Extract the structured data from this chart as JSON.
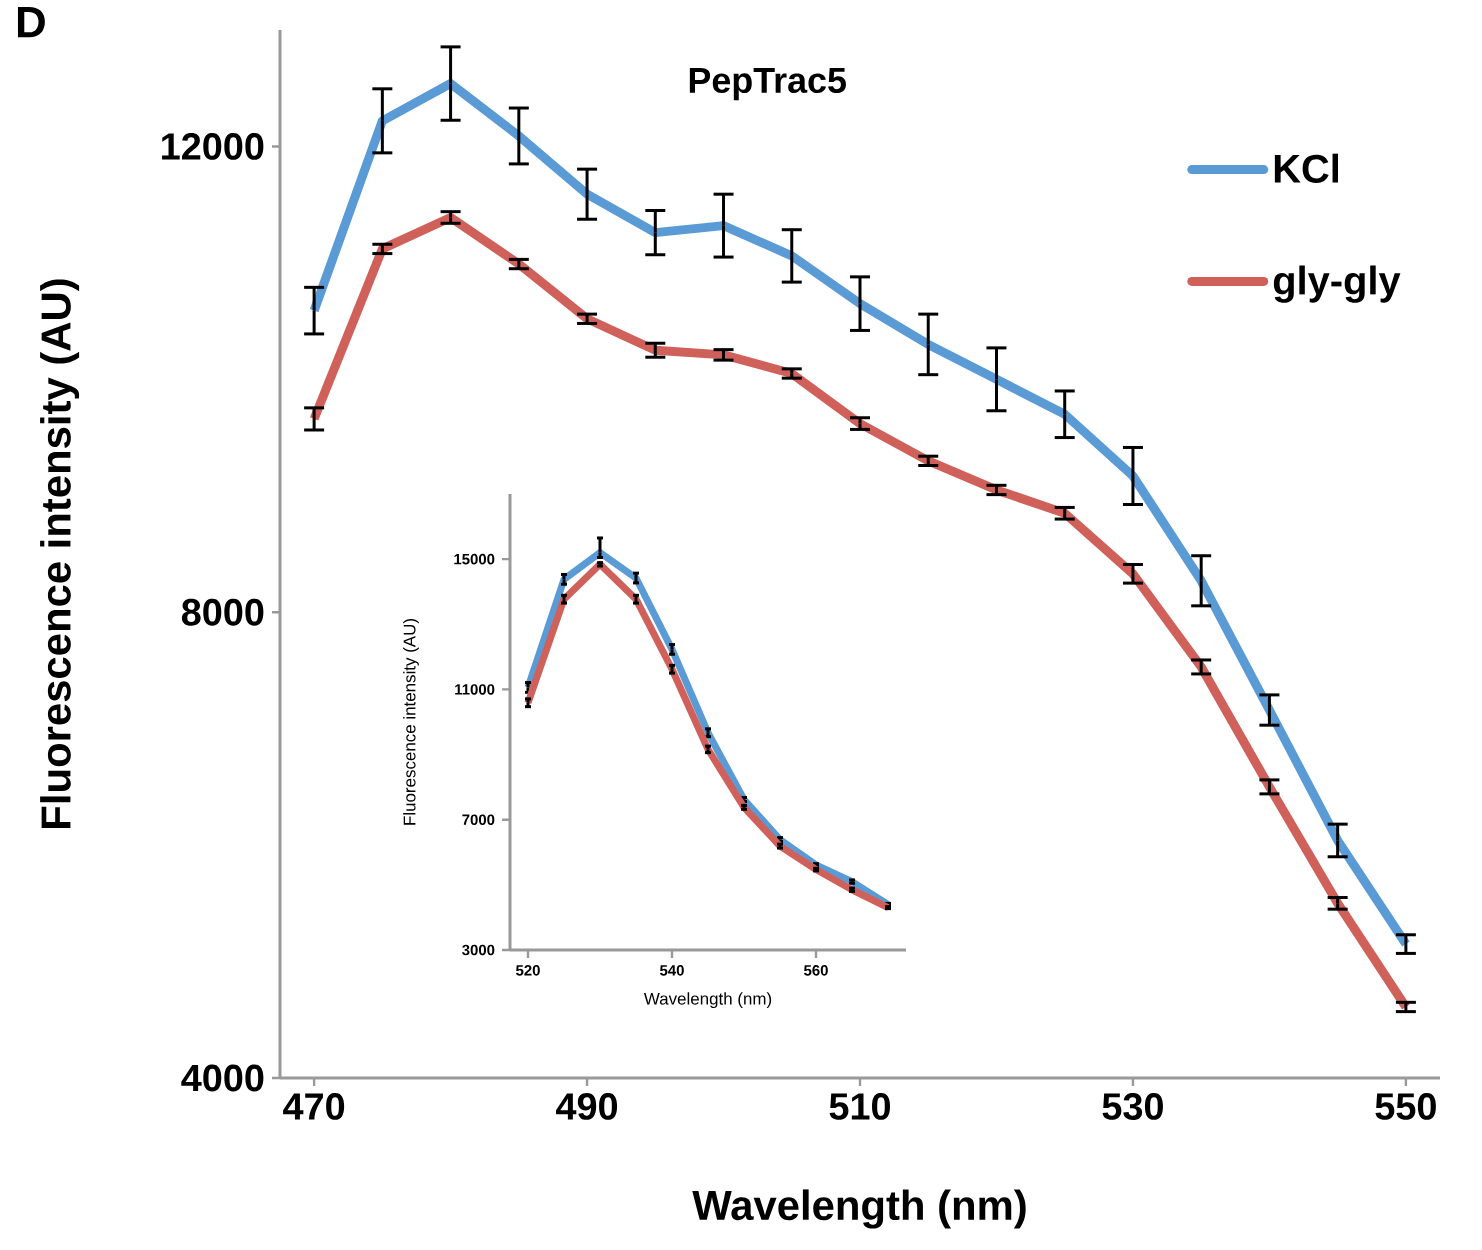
{
  "chart_data": [
    {
      "type": "line",
      "title": "PepTrac5",
      "xlabel": "Wavelength (nm)",
      "ylabel": "Fluorescence intensity (AU)",
      "annotations": [
        "D"
      ],
      "x": [
        470,
        475,
        480,
        485,
        490,
        495,
        500,
        505,
        510,
        515,
        520,
        525,
        530,
        535,
        540,
        545,
        550
      ],
      "series": [
        {
          "name": "KCl",
          "color": "#5b9bd5",
          "values": [
            10590,
            12220,
            12540,
            12090,
            11590,
            11260,
            11320,
            11060,
            10650,
            10300,
            10000,
            9700,
            9170,
            8270,
            7160,
            6040,
            5150
          ],
          "errors": [
            200,
            275,
            315,
            240,
            215,
            190,
            270,
            225,
            230,
            260,
            270,
            200,
            245,
            215,
            130,
            140,
            80
          ]
        },
        {
          "name": "gly-gly",
          "color": "#d0605a",
          "values": [
            9660,
            11120,
            11390,
            10990,
            10520,
            10250,
            10210,
            10050,
            9620,
            9300,
            9050,
            8850,
            8330,
            7530,
            6500,
            5500,
            4610
          ],
          "errors": [
            95,
            40,
            50,
            40,
            40,
            60,
            45,
            40,
            50,
            40,
            40,
            50,
            80,
            60,
            60,
            50,
            40
          ]
        }
      ],
      "xlim": [
        467.5,
        552.5
      ],
      "ylim": [
        4000,
        13000
      ],
      "xticks": [
        470,
        490,
        510,
        530,
        550
      ],
      "yticks": [
        4000,
        8000,
        12000
      ],
      "legend": "top right"
    },
    {
      "type": "line",
      "xlabel": "Wavelength (nm)",
      "ylabel": "Fluorescence intensity (AU)",
      "x": [
        520,
        525,
        530,
        535,
        540,
        545,
        550,
        555,
        560,
        565,
        570
      ],
      "series": [
        {
          "color": "#5b9bd5",
          "values": [
            11060,
            14380,
            15200,
            14420,
            12230,
            9670,
            7620,
            6390,
            5610,
            5100,
            4400
          ],
          "errors": [
            150,
            150,
            [
              15050,
              15650
            ],
            150,
            150,
            120,
            60,
            60,
            40,
            50,
            30
          ]
        },
        {
          "color": "#d0605a",
          "values": [
            10590,
            13770,
            14840,
            13770,
            11620,
            9160,
            7380,
            6190,
            5470,
            4850,
            4300
          ],
          "errors": [
            120,
            120,
            50,
            120,
            120,
            100,
            60,
            60,
            40,
            50,
            30
          ]
        }
      ],
      "xlim": [
        517.5,
        572.5
      ],
      "ylim": [
        3000,
        17000
      ],
      "xticks": [
        520,
        540,
        560
      ],
      "yticks": [
        3000,
        7000,
        11000,
        15000
      ]
    }
  ]
}
